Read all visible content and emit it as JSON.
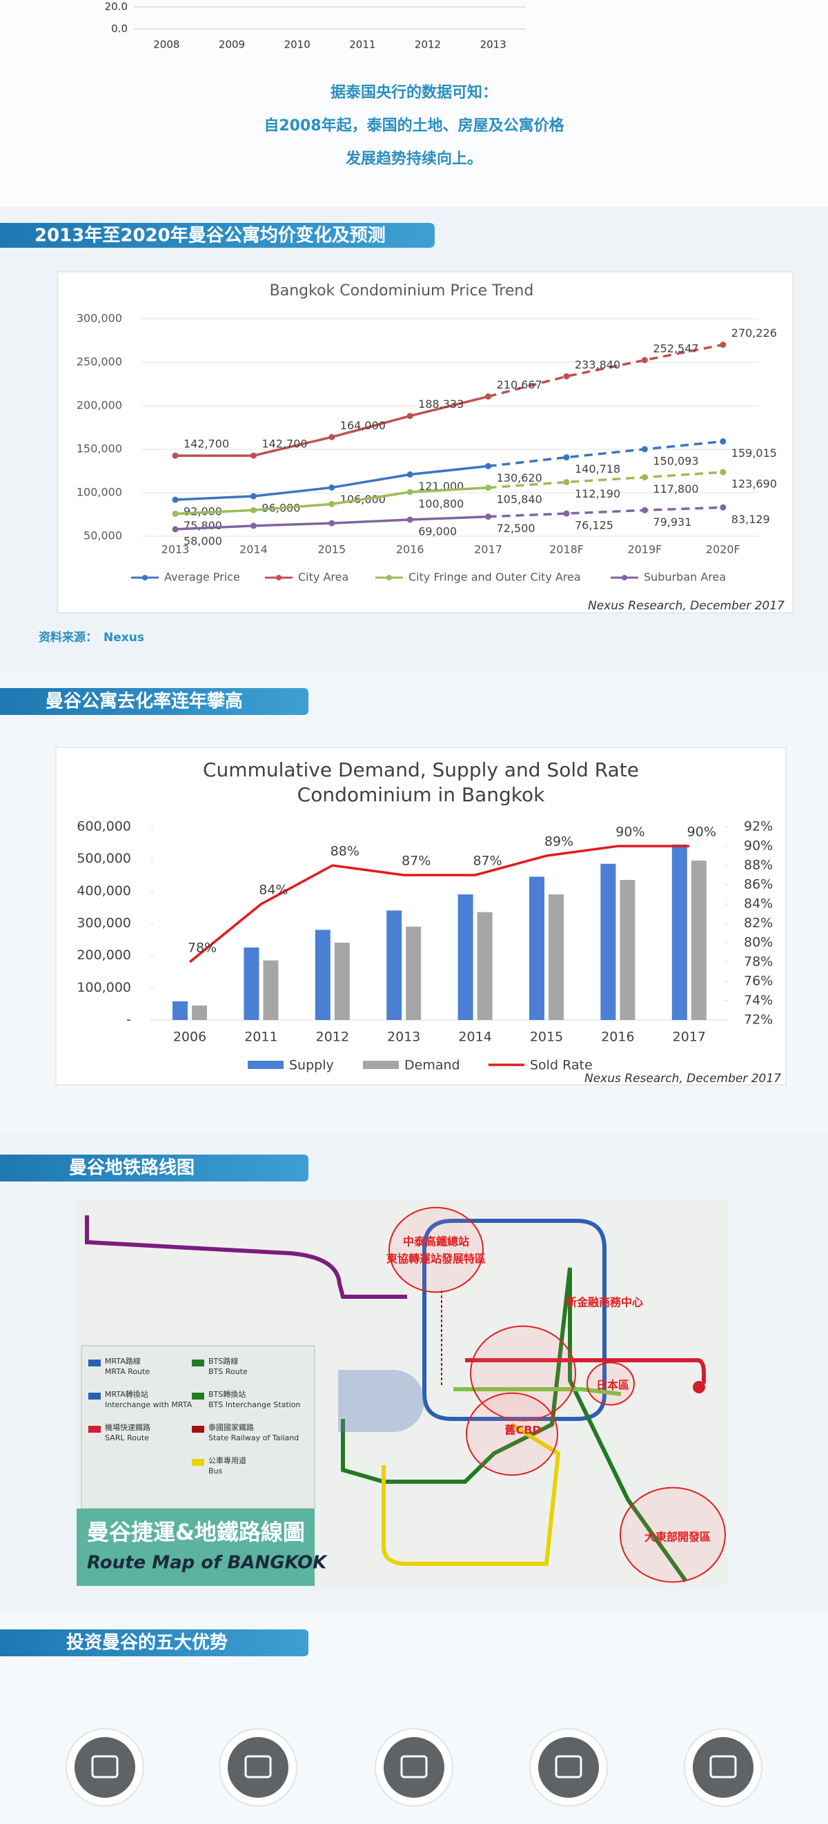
{
  "sections": {
    "intro": [
      "据泰国央行的数据可知：",
      "自2008年起，泰国的土地、房屋及公寓价格",
      "发展趋势持续向上。"
    ],
    "headers": [
      "2013年至2020年曼谷公寓均价变化及预测",
      "曼谷公寓去化率连年攀高",
      "曼谷地铁路线图",
      "投资曼谷的五大优势"
    ],
    "source": {
      "label": "资料来源：",
      "value": "Nexus"
    }
  },
  "chart_data": [
    {
      "type": "line",
      "categories": [
        "2008",
        "2009",
        "2010",
        "2011",
        "2012",
        "2013"
      ],
      "ylim": [
        0,
        20
      ],
      "yticks": [
        {
          "value": 20,
          "label": "20.0"
        },
        {
          "value": 0,
          "label": "0.0"
        }
      ],
      "grid": true
    },
    {
      "type": "line",
      "title": "Bangkok Condominium Price Trend",
      "note": "Nexus Research, December 2017",
      "categories": [
        "2013",
        "2014",
        "2015",
        "2016",
        "2017",
        "2018F",
        "2019F",
        "2020F"
      ],
      "ylim": [
        50000,
        300000
      ],
      "yticks": [
        {
          "value": 50000,
          "label": "50,000"
        },
        {
          "value": 100000,
          "label": "100,000"
        },
        {
          "value": 150000,
          "label": "150,000"
        },
        {
          "value": 200000,
          "label": "200,000"
        },
        {
          "value": 250000,
          "label": "250,000"
        },
        {
          "value": 300000,
          "label": "300,000"
        }
      ],
      "grid": true,
      "legend": "bottom",
      "series": [
        {
          "name": "Average Price",
          "color": "#3a75c4",
          "values": [
            92000,
            96000,
            106000,
            121000,
            130620,
            140718,
            150093,
            159015
          ],
          "value_labels": [
            "92,000",
            "96,000",
            "106,000",
            "121,000",
            "130,620",
            "140,718",
            "150,093",
            "159,015"
          ]
        },
        {
          "name": "City Area",
          "color": "#c0504d",
          "values": [
            142700,
            142700,
            164000,
            188333,
            210667,
            233840,
            252547,
            270226
          ],
          "value_labels": [
            "142,700",
            "142,700",
            "164,000",
            "188,333",
            "210,667",
            "233,840",
            "252,547",
            "270,226"
          ]
        },
        {
          "name": "City Fringe and Outer City Area",
          "color": "#9bbb59",
          "values": [
            75800,
            80000,
            87000,
            100800,
            105840,
            112190,
            117800,
            123690
          ],
          "value_labels": [
            "75,800",
            null,
            null,
            "100,800",
            "105,840",
            "112,190",
            "117,800",
            "123,690"
          ]
        },
        {
          "name": "Suburban Area",
          "color": "#8064a2",
          "values": [
            58000,
            62000,
            65000,
            69000,
            72500,
            76125,
            79931,
            83129
          ],
          "value_labels": [
            "58,000",
            null,
            null,
            "69,000",
            "72,500",
            "76,125",
            "79,931",
            "83,129"
          ]
        }
      ]
    },
    {
      "type": "bar",
      "title": [
        "Cummulative Demand, Supply and Sold Rate",
        "Condominium in Bangkok"
      ],
      "note": "Nexus Research, December 2017",
      "categories": [
        "2006",
        "2011",
        "2012",
        "2013",
        "2014",
        "2015",
        "2016",
        "2017"
      ],
      "ylim": [
        0,
        600000
      ],
      "yticks": [
        {
          "value": 0,
          "label": "-"
        },
        {
          "value": 100000,
          "label": "100,000"
        },
        {
          "value": 200000,
          "label": "200,000"
        },
        {
          "value": 300000,
          "label": "300,000"
        },
        {
          "value": 400000,
          "label": "400,000"
        },
        {
          "value": 500000,
          "label": "500,000"
        },
        {
          "value": 600000,
          "label": "600,000"
        }
      ],
      "y2lim": [
        72,
        92
      ],
      "y2ticks": [
        {
          "value": 72,
          "label": "72%"
        },
        {
          "value": 74,
          "label": "74%"
        },
        {
          "value": 76,
          "label": "76%"
        },
        {
          "value": 78,
          "label": "78%"
        },
        {
          "value": 80,
          "label": "80%"
        },
        {
          "value": 82,
          "label": "82%"
        },
        {
          "value": 84,
          "label": "84%"
        },
        {
          "value": 86,
          "label": "86%"
        },
        {
          "value": 88,
          "label": "88%"
        },
        {
          "value": 90,
          "label": "90%"
        },
        {
          "value": 92,
          "label": "92%"
        }
      ],
      "legend": "bottom",
      "series": [
        {
          "name": "Supply",
          "color": "#4a7fd4",
          "values": [
            58000,
            225000,
            280000,
            340000,
            390000,
            445000,
            485000,
            545000
          ]
        },
        {
          "name": "Demand",
          "color": "#a6a6a6",
          "values": [
            45000,
            185000,
            240000,
            290000,
            335000,
            390000,
            435000,
            495000
          ]
        },
        {
          "name": "Sold Rate",
          "color": "#e31a1c",
          "type": "line",
          "axis": "y2",
          "values": [
            78,
            84,
            88,
            87,
            87,
            89,
            90,
            90
          ],
          "value_labels": [
            "78%",
            "84%",
            "88%",
            "87%",
            "87%",
            "89%",
            "90%",
            "90%"
          ]
        }
      ]
    }
  ],
  "map": {
    "title_cn": "曼谷捷運&地鐵路線圖",
    "title_en": "Route Map of BANGKOK",
    "legend": [
      {
        "cn": "MRTA路線",
        "en": "MRTA Route"
      },
      {
        "cn": "BTS路線",
        "en": "BTS Route"
      },
      {
        "cn": "MRTA轉換站",
        "en": "Interchange with MRTA"
      },
      {
        "cn": "BTS轉換站",
        "en": "BTS Interchange Station"
      },
      {
        "cn": "機場快速鐵路",
        "en": "SARL Route"
      },
      {
        "cn": "泰國國家鐵路",
        "en": "State Railway of Tailand"
      },
      {
        "cn": "公車專用道",
        "en": "Bus"
      }
    ],
    "zones": [
      "中泰高鐵總站",
      "東協轉運站發展特區",
      "新金融商務中心",
      "舊CBD",
      "日本區",
      "大東部開發區"
    ]
  }
}
